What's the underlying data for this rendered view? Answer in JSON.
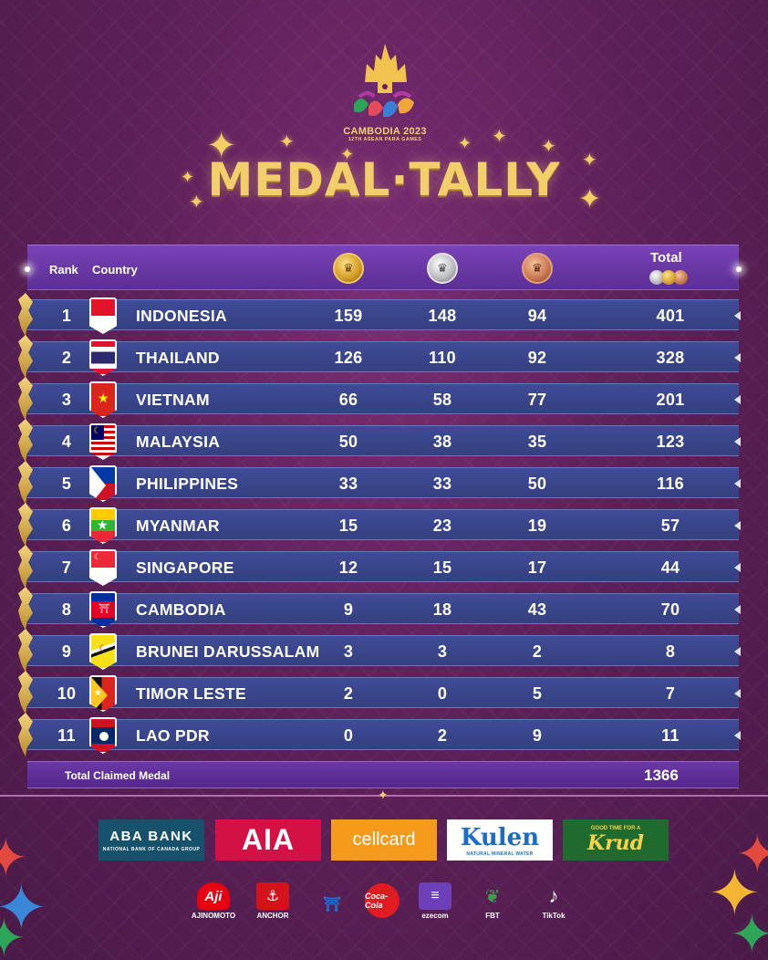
{
  "logo": {
    "title": "CAMBODIA 2023",
    "subtitle": "12TH ASEAN PARA GAMES"
  },
  "headline": "MEDAL·TALLY",
  "table": {
    "headers": {
      "rank": "Rank",
      "country": "Country",
      "total": "Total"
    },
    "medal_icons": [
      "gold-medal-icon",
      "silver-medal-icon",
      "bronze-medal-icon"
    ],
    "rows": [
      {
        "rank": "1",
        "country": "INDONESIA",
        "gold": "159",
        "silver": "148",
        "bronze": "94",
        "total": "401"
      },
      {
        "rank": "2",
        "country": "THAILAND",
        "gold": "126",
        "silver": "110",
        "bronze": "92",
        "total": "328"
      },
      {
        "rank": "3",
        "country": "VIETNAM",
        "gold": "66",
        "silver": "58",
        "bronze": "77",
        "total": "201"
      },
      {
        "rank": "4",
        "country": "MALAYSIA",
        "gold": "50",
        "silver": "38",
        "bronze": "35",
        "total": "123"
      },
      {
        "rank": "5",
        "country": "PHILIPPINES",
        "gold": "33",
        "silver": "33",
        "bronze": "50",
        "total": "116"
      },
      {
        "rank": "6",
        "country": "MYANMAR",
        "gold": "15",
        "silver": "23",
        "bronze": "19",
        "total": "57"
      },
      {
        "rank": "7",
        "country": "SINGAPORE",
        "gold": "12",
        "silver": "15",
        "bronze": "17",
        "total": "44"
      },
      {
        "rank": "8",
        "country": "CAMBODIA",
        "gold": "9",
        "silver": "18",
        "bronze": "43",
        "total": "70"
      },
      {
        "rank": "9",
        "country": "BRUNEI DARUSSALAM",
        "gold": "3",
        "silver": "3",
        "bronze": "2",
        "total": "8"
      },
      {
        "rank": "10",
        "country": "TIMOR LESTE",
        "gold": "2",
        "silver": "0",
        "bronze": "5",
        "total": "7"
      },
      {
        "rank": "11",
        "country": "LAO PDR",
        "gold": "0",
        "silver": "2",
        "bronze": "9",
        "total": "11"
      }
    ],
    "total_label": "Total Claimed Medal",
    "total_value": "1366"
  },
  "sponsors": {
    "row1": {
      "aba": {
        "name": "ABA BANK",
        "sub": "NATIONAL BANK OF CANADA GROUP"
      },
      "aia": {
        "name": "AIA"
      },
      "cellcard": {
        "name": "cellcard"
      },
      "kulen": {
        "name": "Kulen",
        "sub": "NATURAL MINERAL WATER"
      },
      "krud": {
        "name": "Krud",
        "sub": "GOOD TIME FOR A"
      }
    },
    "row2": {
      "ajinomoto": "AJINOMOTO",
      "anchor": "ANCHOR",
      "coca_cola": "Coca-Cola",
      "ezecom": "ezecom",
      "fbt": "FBT",
      "tiktok": "TikTok"
    }
  },
  "colors": {
    "background": "#5e2159",
    "gold_text": "#f3cf6c",
    "row_fill": "#3a4688",
    "header_fill": "#6a3aa6"
  }
}
